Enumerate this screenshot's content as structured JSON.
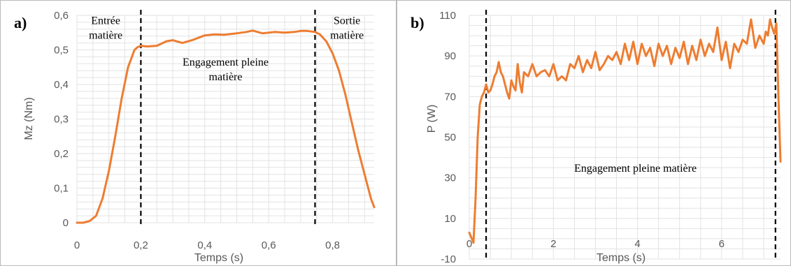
{
  "colors": {
    "series": "#ed7d31",
    "grid": "#e2e2e2",
    "frame": "#b9b9b9",
    "text": "#595959"
  },
  "chart_data": [
    {
      "type": "line",
      "panel_label": "a)",
      "xlabel": "Temps (s)",
      "ylabel": "Mz (Nm)",
      "xlim": [
        0,
        0.93
      ],
      "ylim": [
        0,
        0.6
      ],
      "x_ticks": [
        0,
        0.2,
        0.4,
        0.6,
        0.8
      ],
      "x_tick_labels": [
        "0",
        "0,2",
        "0,4",
        "0,6",
        "0,8"
      ],
      "y_ticks": [
        0,
        0.1,
        0.2,
        0.3,
        0.4,
        0.5,
        0.6
      ],
      "y_tick_labels": [
        "0",
        "0,1",
        "0,2",
        "0,3",
        "0,4",
        "0,5",
        "0,6"
      ],
      "grid": true,
      "markers_x": [
        0.2,
        0.745
      ],
      "annotations": [
        {
          "lines": [
            "Entrée",
            "matière"
          ],
          "x": 0.09,
          "y": 0.575
        },
        {
          "lines": [
            "Engagement pleine",
            "matière"
          ],
          "x": 0.465,
          "y": 0.455
        },
        {
          "lines": [
            "Sortie",
            "matière"
          ],
          "x": 0.845,
          "y": 0.575
        }
      ],
      "series": [
        {
          "x": [
            0,
            0.02,
            0.04,
            0.06,
            0.08,
            0.1,
            0.12,
            0.14,
            0.16,
            0.18,
            0.19,
            0.2,
            0.22,
            0.25,
            0.28,
            0.3,
            0.33,
            0.36,
            0.4,
            0.43,
            0.46,
            0.5,
            0.53,
            0.55,
            0.58,
            0.62,
            0.65,
            0.68,
            0.7,
            0.72,
            0.745,
            0.76,
            0.78,
            0.8,
            0.82,
            0.84,
            0.86,
            0.88,
            0.9,
            0.92,
            0.93
          ],
          "y": [
            0,
            0,
            0.005,
            0.02,
            0.07,
            0.15,
            0.25,
            0.36,
            0.45,
            0.5,
            0.508,
            0.512,
            0.51,
            0.512,
            0.525,
            0.528,
            0.52,
            0.528,
            0.542,
            0.545,
            0.544,
            0.548,
            0.552,
            0.556,
            0.548,
            0.552,
            0.55,
            0.552,
            0.555,
            0.555,
            0.552,
            0.545,
            0.525,
            0.49,
            0.44,
            0.37,
            0.29,
            0.21,
            0.14,
            0.07,
            0.045
          ]
        }
      ]
    },
    {
      "type": "line",
      "panel_label": "b)",
      "xlabel": "Temps (s)",
      "ylabel": "P (W)",
      "xlim": [
        0,
        7.4
      ],
      "ylim": [
        -10,
        110
      ],
      "x_ticks": [
        0,
        2,
        4,
        6
      ],
      "x_tick_labels": [
        "0",
        "2",
        "4",
        "6"
      ],
      "y_ticks": [
        -10,
        10,
        30,
        50,
        70,
        90,
        110
      ],
      "y_tick_labels": [
        "-10",
        "10",
        "30",
        "50",
        "70",
        "90",
        "110"
      ],
      "grid": true,
      "markers_x": [
        0.4,
        7.28
      ],
      "annotations": [
        {
          "lines": [
            "Engagement pleine matière"
          ],
          "x": 3.95,
          "y": 33
        }
      ],
      "series": [
        {
          "x": [
            0,
            0.1,
            0.15,
            0.2,
            0.25,
            0.3,
            0.35,
            0.4,
            0.45,
            0.5,
            0.55,
            0.6,
            0.65,
            0.7,
            0.75,
            0.8,
            0.85,
            0.9,
            0.95,
            1.0,
            1.05,
            1.1,
            1.15,
            1.2,
            1.25,
            1.3,
            1.4,
            1.5,
            1.6,
            1.7,
            1.8,
            1.9,
            2.0,
            2.1,
            2.2,
            2.3,
            2.4,
            2.5,
            2.6,
            2.7,
            2.8,
            2.9,
            3.0,
            3.1,
            3.2,
            3.3,
            3.4,
            3.5,
            3.6,
            3.7,
            3.8,
            3.9,
            4.0,
            4.1,
            4.2,
            4.3,
            4.4,
            4.5,
            4.6,
            4.7,
            4.8,
            4.9,
            5.0,
            5.1,
            5.2,
            5.3,
            5.4,
            5.5,
            5.6,
            5.7,
            5.8,
            5.9,
            6.0,
            6.1,
            6.2,
            6.3,
            6.4,
            6.5,
            6.6,
            6.7,
            6.8,
            6.9,
            7.0,
            7.05,
            7.1,
            7.15,
            7.2,
            7.25,
            7.3,
            7.35,
            7.4
          ],
          "y": [
            3,
            -2,
            20,
            50,
            66,
            70,
            72,
            76,
            72,
            73,
            76,
            80,
            82,
            87,
            82,
            80,
            76,
            72,
            69,
            78,
            75,
            73,
            86,
            77,
            72,
            82,
            80,
            86,
            80,
            82,
            83,
            80,
            86,
            78,
            80,
            78,
            86,
            84,
            90,
            82,
            88,
            84,
            92,
            83,
            86,
            90,
            88,
            92,
            86,
            96,
            88,
            97,
            86,
            96,
            90,
            94,
            85,
            96,
            90,
            95,
            86,
            94,
            89,
            97,
            86,
            95,
            88,
            98,
            90,
            96,
            92,
            104,
            88,
            97,
            84,
            96,
            92,
            98,
            96,
            108,
            94,
            100,
            96,
            102,
            100,
            108,
            104,
            101,
            106,
            70,
            38
          ]
        }
      ]
    }
  ]
}
